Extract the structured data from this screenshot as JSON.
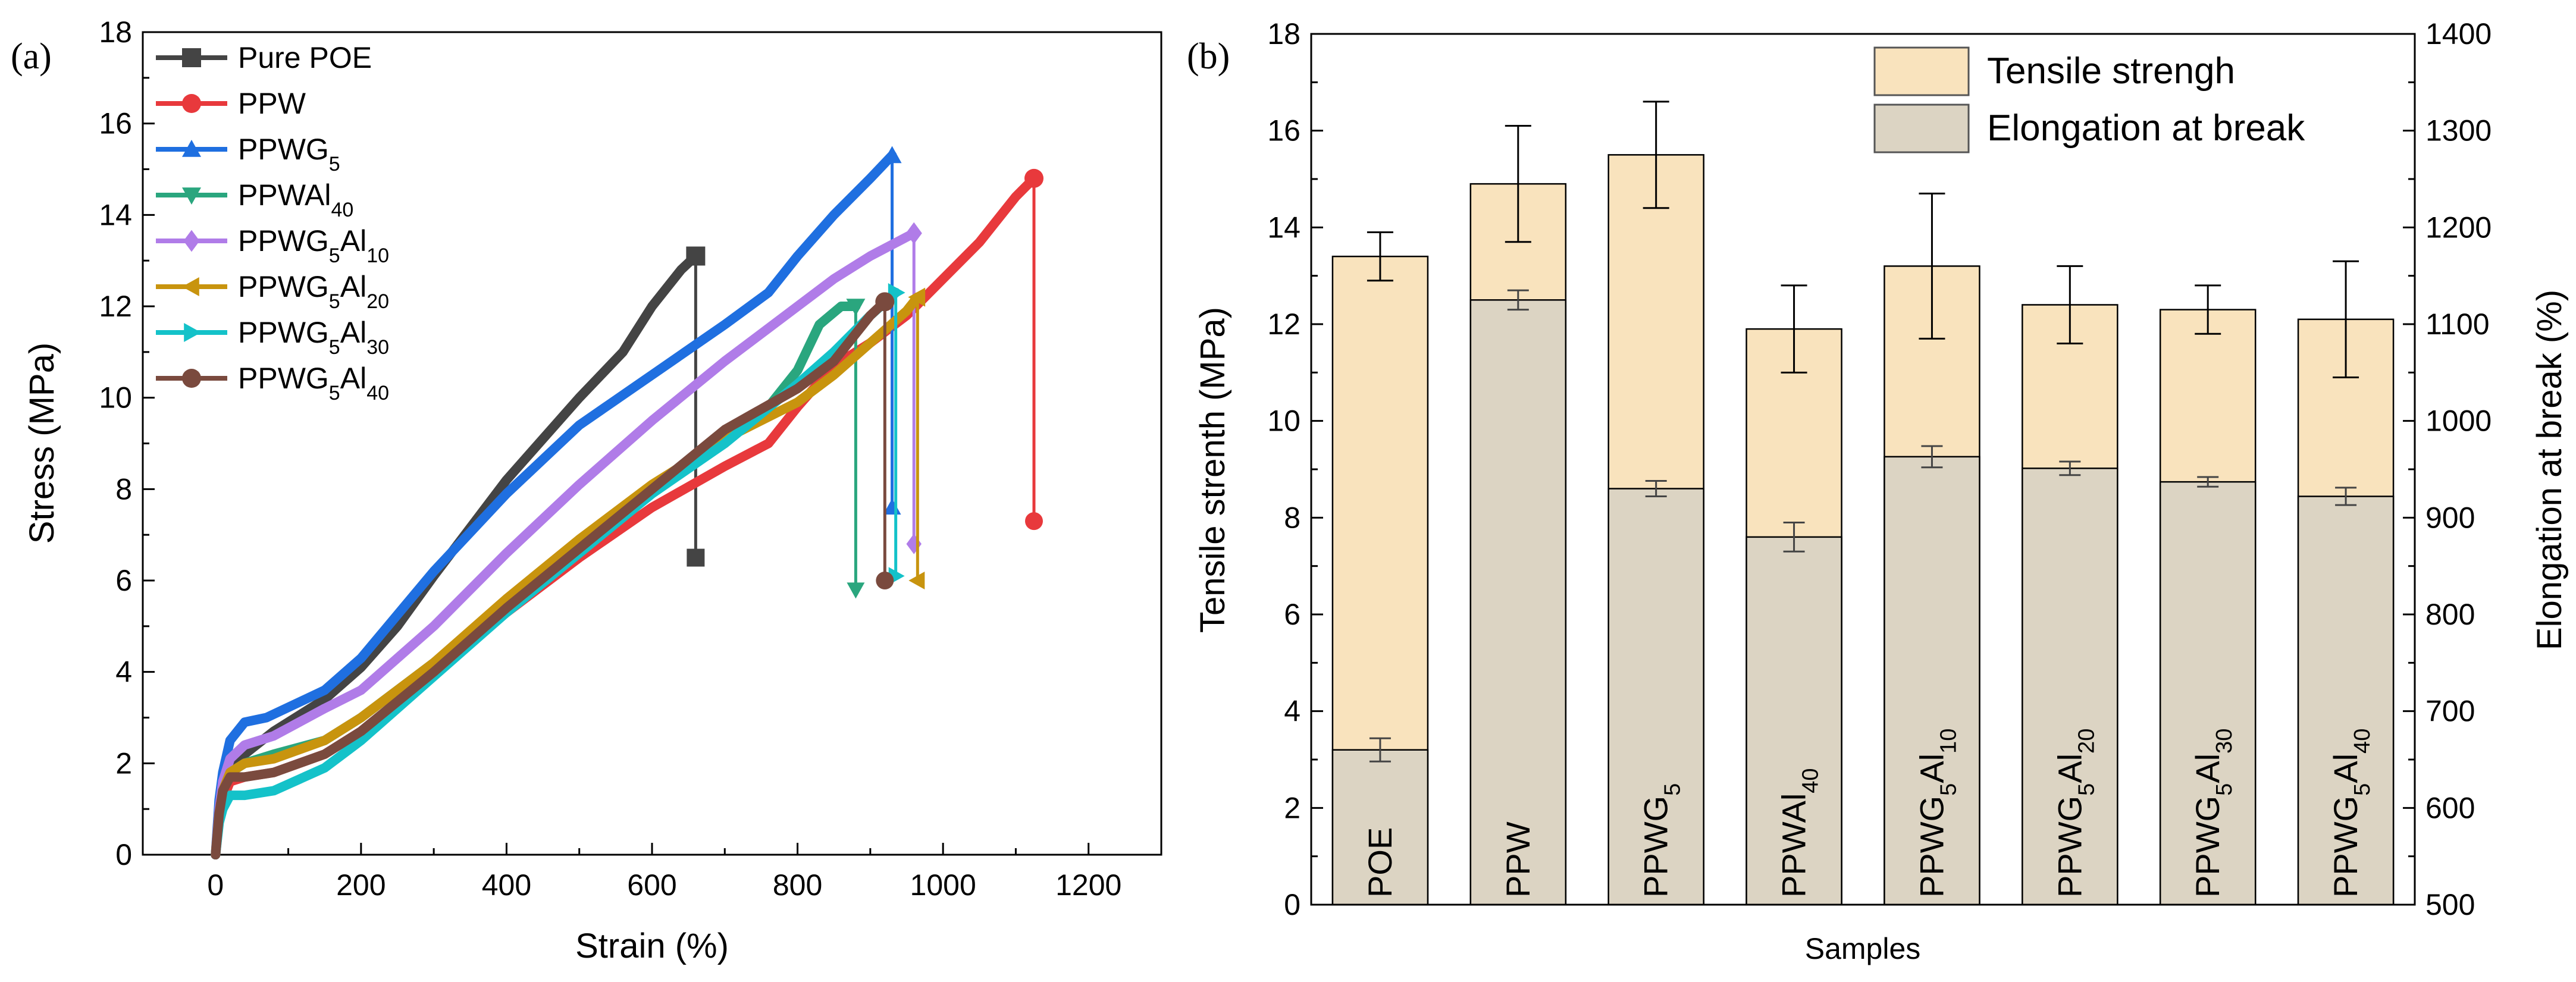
{
  "chart_data": [
    {
      "panel_label": "(a)",
      "type": "line",
      "xlabel": "Strain (%)",
      "ylabel": "Stress (MPa)",
      "xlim": [
        -100,
        1300
      ],
      "ylim": [
        0,
        18
      ],
      "xticks": [
        "0",
        "200",
        "400",
        "600",
        "800",
        "1000",
        "1200"
      ],
      "yticks": [
        "0",
        "2",
        "4",
        "6",
        "8",
        "10",
        "12",
        "14",
        "16",
        "18"
      ],
      "legend_position": "top-left",
      "series": [
        {
          "name": "Pure POE",
          "base": "Pure POE",
          "sub": [],
          "color": "#444444",
          "marker": "square",
          "x": [
            0,
            5,
            10,
            20,
            40,
            80,
            150,
            200,
            250,
            300,
            400,
            500,
            560,
            600,
            640,
            660
          ],
          "y": [
            0,
            0.8,
            1.2,
            1.8,
            2.2,
            2.7,
            3.4,
            4.1,
            5.0,
            6.1,
            8.2,
            10.0,
            11.0,
            12.0,
            12.8,
            13.1
          ],
          "drop_to": 6.5
        },
        {
          "name": "PPW",
          "base": "PPW",
          "sub": [],
          "color": "#e8393c",
          "marker": "circle",
          "x": [
            0,
            5,
            10,
            20,
            40,
            80,
            150,
            200,
            300,
            400,
            500,
            600,
            700,
            760,
            800,
            850,
            900,
            950,
            1000,
            1050,
            1100,
            1125
          ],
          "y": [
            0,
            0.8,
            1.2,
            1.6,
            1.7,
            1.8,
            2.2,
            2.7,
            4.0,
            5.3,
            6.5,
            7.6,
            8.5,
            9.0,
            9.8,
            10.7,
            11.2,
            11.8,
            12.6,
            13.4,
            14.4,
            14.8
          ],
          "drop_to": 7.3
        },
        {
          "name": "PPWG5",
          "base": "PPWG",
          "sub": [
            "5"
          ],
          "color": "#1f6fe0",
          "marker": "triangle-up",
          "x": [
            0,
            5,
            10,
            20,
            40,
            70,
            150,
            200,
            300,
            400,
            500,
            600,
            700,
            760,
            800,
            850,
            900,
            930
          ],
          "y": [
            0,
            1.2,
            1.8,
            2.5,
            2.9,
            3.0,
            3.6,
            4.3,
            6.2,
            7.9,
            9.4,
            10.5,
            11.6,
            12.3,
            13.1,
            14.0,
            14.8,
            15.3
          ],
          "drop_to": 7.6
        },
        {
          "name": "PPWAl40",
          "base": "PPWAl",
          "sub": [
            "40"
          ],
          "color": "#2aa67e",
          "marker": "triangle-down",
          "x": [
            0,
            5,
            10,
            20,
            40,
            80,
            150,
            200,
            300,
            400,
            500,
            600,
            700,
            760,
            800,
            830,
            860,
            880
          ],
          "y": [
            0,
            0.9,
            1.4,
            1.8,
            2.0,
            2.2,
            2.5,
            3.0,
            4.2,
            5.5,
            6.8,
            8.0,
            9.2,
            9.8,
            10.6,
            11.6,
            12.0,
            12.0
          ],
          "drop_to": 5.8
        },
        {
          "name": "PPWG5Al10",
          "base": "PPWG",
          "sub": [
            "5",
            "10"
          ],
          "color": "#b07ce8",
          "marker": "diamond",
          "x": [
            0,
            5,
            10,
            20,
            40,
            80,
            150,
            200,
            300,
            400,
            500,
            600,
            700,
            800,
            850,
            900,
            960
          ],
          "y": [
            0,
            1.0,
            1.6,
            2.1,
            2.4,
            2.6,
            3.2,
            3.6,
            5.0,
            6.6,
            8.1,
            9.5,
            10.8,
            12.0,
            12.6,
            13.1,
            13.6
          ],
          "drop_to": 6.8
        },
        {
          "name": "PPWG5Al20",
          "base": "PPWG",
          "sub": [
            "5",
            "20"
          ],
          "color": "#c8940e",
          "marker": "triangle-left",
          "x": [
            0,
            5,
            10,
            20,
            40,
            80,
            150,
            200,
            300,
            400,
            500,
            600,
            700,
            800,
            850,
            900,
            950,
            965
          ],
          "y": [
            0,
            0.9,
            1.4,
            1.8,
            2.0,
            2.1,
            2.5,
            3.0,
            4.2,
            5.6,
            6.9,
            8.1,
            9.1,
            9.9,
            10.5,
            11.2,
            11.9,
            12.2
          ],
          "drop_to": 6.0
        },
        {
          "name": "PPWG5Al30",
          "base": "PPWG",
          "sub": [
            "5",
            "30"
          ],
          "color": "#14c2c9",
          "marker": "triangle-right",
          "x": [
            0,
            5,
            10,
            20,
            40,
            80,
            150,
            200,
            300,
            400,
            500,
            600,
            700,
            800,
            850,
            900,
            935
          ],
          "y": [
            0,
            0.7,
            1.0,
            1.3,
            1.3,
            1.4,
            1.9,
            2.5,
            3.9,
            5.3,
            6.6,
            7.9,
            9.0,
            10.3,
            11.0,
            11.8,
            12.3
          ],
          "drop_to": 6.1
        },
        {
          "name": "PPWG5Al40",
          "base": "PPWG",
          "sub": [
            "5",
            "40"
          ],
          "color": "#7a4a3e",
          "marker": "circle",
          "x": [
            0,
            5,
            10,
            20,
            40,
            80,
            150,
            200,
            300,
            400,
            500,
            600,
            700,
            800,
            850,
            880,
            900,
            920
          ],
          "y": [
            0,
            0.9,
            1.4,
            1.7,
            1.7,
            1.8,
            2.2,
            2.7,
            4.0,
            5.4,
            6.7,
            8.0,
            9.3,
            10.2,
            10.8,
            11.4,
            11.8,
            12.1
          ],
          "drop_to": 6.0
        }
      ]
    },
    {
      "panel_label": "(b)",
      "type": "bar",
      "xlabel": "Samples",
      "ylabel": "Tensile strenth (MPa)",
      "ylabel_right": "Elongation at break (%)",
      "ylim": [
        0,
        18
      ],
      "ylim_right": [
        500,
        1400
      ],
      "yticks": [
        "0",
        "2",
        "4",
        "6",
        "8",
        "10",
        "12",
        "14",
        "16",
        "18"
      ],
      "yticks_right": [
        "500",
        "600",
        "700",
        "800",
        "900",
        "1000",
        "1100",
        "1200",
        "1300",
        "1400"
      ],
      "legend_position": "top-right",
      "categories": [
        {
          "name": "POE",
          "base": "POE",
          "sub": []
        },
        {
          "name": "PPW",
          "base": "PPW",
          "sub": []
        },
        {
          "name": "PPWG5",
          "base": "PPWG",
          "sub": [
            "5"
          ]
        },
        {
          "name": "PPWAl40",
          "base": "PPWAl",
          "sub": [
            "40"
          ]
        },
        {
          "name": "PPWG5Al10",
          "base": "PPWG",
          "sub": [
            "5",
            "10"
          ]
        },
        {
          "name": "PPWG5Al20",
          "base": "PPWG",
          "sub": [
            "5",
            "20"
          ]
        },
        {
          "name": "PPWG5Al30",
          "base": "PPWG",
          "sub": [
            "5",
            "30"
          ]
        },
        {
          "name": "PPWG5Al40",
          "base": "PPWG",
          "sub": [
            "5",
            "40"
          ]
        }
      ],
      "series": [
        {
          "name": "Tensile strengh",
          "axis": "left",
          "color": "#f9e3bd",
          "values": [
            13.4,
            14.9,
            15.5,
            11.9,
            13.2,
            12.4,
            12.3,
            12.1
          ],
          "errors": [
            0.5,
            1.2,
            1.1,
            0.9,
            1.5,
            0.8,
            0.5,
            1.2
          ]
        },
        {
          "name": "Elongation at break",
          "axis": "right",
          "color": "#dcd4c3",
          "values": [
            660,
            1125,
            930,
            880,
            963,
            951,
            937,
            922
          ],
          "errors": [
            12,
            10,
            8,
            15,
            11,
            7,
            5,
            9
          ]
        }
      ]
    }
  ]
}
